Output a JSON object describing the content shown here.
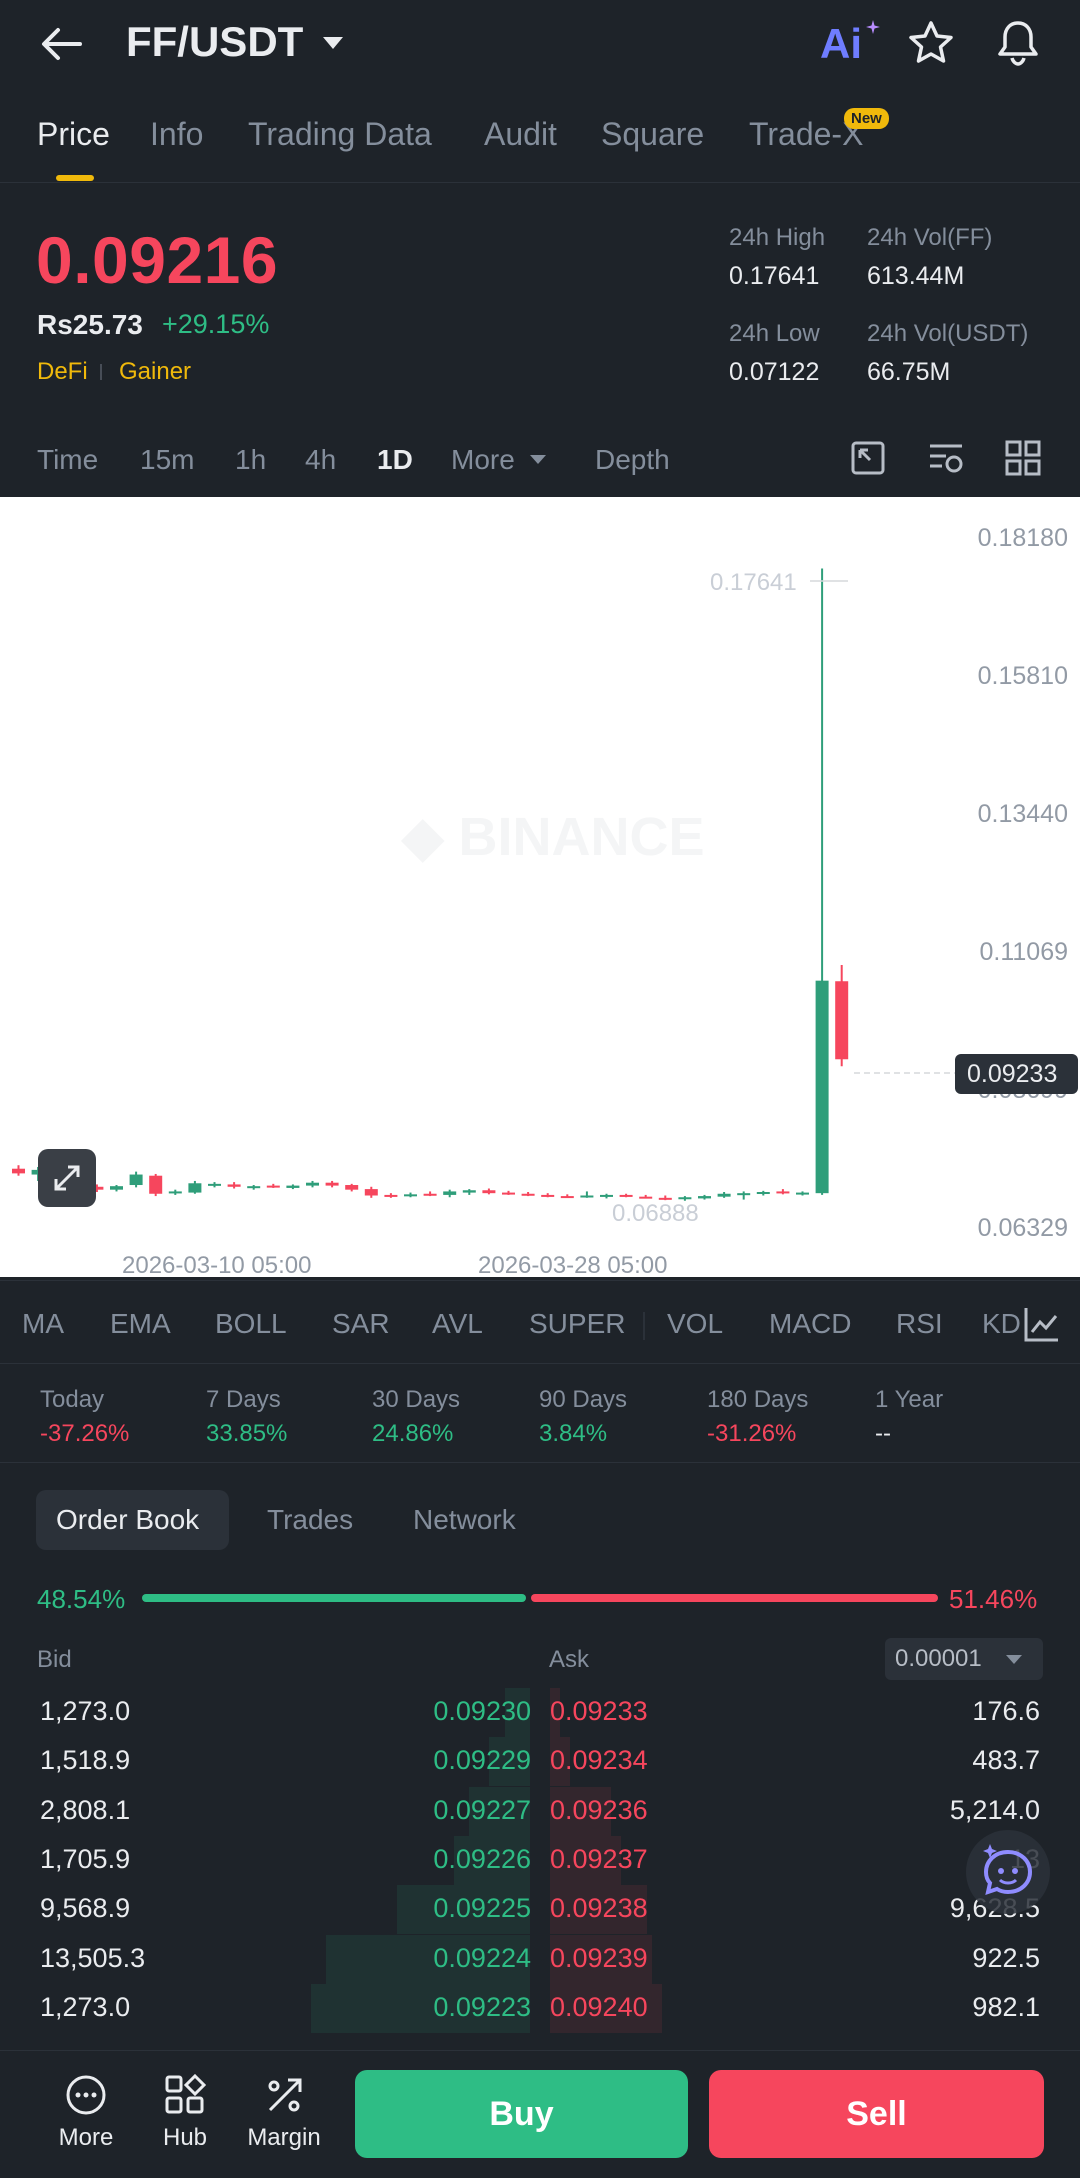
{
  "header": {
    "pair": "FF/USDT",
    "ai_label": "Ai"
  },
  "tabs": [
    {
      "label": "Price",
      "active": true
    },
    {
      "label": "Info"
    },
    {
      "label": "Trading Data"
    },
    {
      "label": "Audit"
    },
    {
      "label": "Square"
    },
    {
      "label": "Trade-X",
      "badge": "New"
    }
  ],
  "price": {
    "last": "0.09216",
    "fiat": "Rs25.73",
    "change": "+29.15%",
    "tags": [
      "DeFi",
      "Gainer"
    ]
  },
  "stats": {
    "high_label": "24h High",
    "high": "0.17641",
    "low_label": "24h Low",
    "low": "0.07122",
    "vol_ff_label": "24h Vol(FF)",
    "vol_ff": "613.44M",
    "vol_usdt_label": "24h Vol(USDT)",
    "vol_usdt": "66.75M"
  },
  "timeframes": [
    "Time",
    "15m",
    "1h",
    "4h",
    "1D",
    "More",
    "Depth"
  ],
  "active_timeframe": "1D",
  "chart_data": {
    "type": "candlestick",
    "y_ticks": [
      "0.18180",
      "0.15810",
      "0.13440",
      "0.11069",
      "0.08699",
      "0.06329"
    ],
    "x_ticks": [
      "2026-03-10 05:00",
      "2026-03-28 05:00"
    ],
    "ylim": [
      0.06329,
      0.1818
    ],
    "max_label": "0.17641",
    "min_label": "0.06888",
    "current_price_label": "0.09233",
    "candles": [
      {
        "o": 0.0733,
        "h": 0.0739,
        "l": 0.0721,
        "c": 0.0725
      },
      {
        "o": 0.0723,
        "h": 0.0736,
        "l": 0.0712,
        "c": 0.0731
      },
      {
        "o": 0.0729,
        "h": 0.0735,
        "l": 0.0705,
        "c": 0.0709
      },
      {
        "o": 0.0705,
        "h": 0.0708,
        "l": 0.0695,
        "c": 0.0701
      },
      {
        "o": 0.0702,
        "h": 0.0706,
        "l": 0.0693,
        "c": 0.0697
      },
      {
        "o": 0.0697,
        "h": 0.0705,
        "l": 0.0694,
        "c": 0.0703
      },
      {
        "o": 0.0705,
        "h": 0.0728,
        "l": 0.0701,
        "c": 0.0723
      },
      {
        "o": 0.0721,
        "h": 0.0724,
        "l": 0.0686,
        "c": 0.069
      },
      {
        "o": 0.0693,
        "h": 0.0697,
        "l": 0.0688,
        "c": 0.0694
      },
      {
        "o": 0.0692,
        "h": 0.0712,
        "l": 0.069,
        "c": 0.0708
      },
      {
        "o": 0.0706,
        "h": 0.071,
        "l": 0.0701,
        "c": 0.0707
      },
      {
        "o": 0.0706,
        "h": 0.071,
        "l": 0.0699,
        "c": 0.0702
      },
      {
        "o": 0.0701,
        "h": 0.0705,
        "l": 0.0697,
        "c": 0.0703
      },
      {
        "o": 0.0704,
        "h": 0.0707,
        "l": 0.07,
        "c": 0.0702
      },
      {
        "o": 0.07,
        "h": 0.0706,
        "l": 0.0698,
        "c": 0.0704
      },
      {
        "o": 0.0704,
        "h": 0.0712,
        "l": 0.0701,
        "c": 0.0709
      },
      {
        "o": 0.0709,
        "h": 0.0712,
        "l": 0.0701,
        "c": 0.0704
      },
      {
        "o": 0.0705,
        "h": 0.0707,
        "l": 0.0694,
        "c": 0.0697
      },
      {
        "o": 0.0698,
        "h": 0.0702,
        "l": 0.0683,
        "c": 0.0687
      },
      {
        "o": 0.0688,
        "h": 0.0691,
        "l": 0.0683,
        "c": 0.0687
      },
      {
        "o": 0.0686,
        "h": 0.0692,
        "l": 0.0684,
        "c": 0.0689
      },
      {
        "o": 0.069,
        "h": 0.0694,
        "l": 0.0686,
        "c": 0.0688
      },
      {
        "o": 0.0688,
        "h": 0.0697,
        "l": 0.0684,
        "c": 0.0694
      },
      {
        "o": 0.0692,
        "h": 0.0698,
        "l": 0.0688,
        "c": 0.0696
      },
      {
        "o": 0.0696,
        "h": 0.0699,
        "l": 0.0689,
        "c": 0.0691
      },
      {
        "o": 0.0692,
        "h": 0.0695,
        "l": 0.0688,
        "c": 0.069
      },
      {
        "o": 0.069,
        "h": 0.0693,
        "l": 0.0686,
        "c": 0.0688
      },
      {
        "o": 0.0688,
        "h": 0.0691,
        "l": 0.0684,
        "c": 0.0686
      },
      {
        "o": 0.0686,
        "h": 0.0689,
        "l": 0.0683,
        "c": 0.0685
      },
      {
        "o": 0.0685,
        "h": 0.0694,
        "l": 0.0683,
        "c": 0.0687
      },
      {
        "o": 0.0686,
        "h": 0.069,
        "l": 0.0682,
        "c": 0.0688
      },
      {
        "o": 0.0688,
        "h": 0.069,
        "l": 0.0684,
        "c": 0.0686
      },
      {
        "o": 0.0685,
        "h": 0.0688,
        "l": 0.0682,
        "c": 0.0684
      },
      {
        "o": 0.0683,
        "h": 0.0687,
        "l": 0.0679,
        "c": 0.0681
      },
      {
        "o": 0.0681,
        "h": 0.0686,
        "l": 0.0678,
        "c": 0.0684
      },
      {
        "o": 0.0682,
        "h": 0.0688,
        "l": 0.068,
        "c": 0.0686
      },
      {
        "o": 0.0685,
        "h": 0.0693,
        "l": 0.0683,
        "c": 0.069
      },
      {
        "o": 0.0689,
        "h": 0.0694,
        "l": 0.068,
        "c": 0.0691
      },
      {
        "o": 0.069,
        "h": 0.0695,
        "l": 0.0687,
        "c": 0.0693
      },
      {
        "o": 0.0694,
        "h": 0.0698,
        "l": 0.0689,
        "c": 0.0691
      },
      {
        "o": 0.069,
        "h": 0.0694,
        "l": 0.0687,
        "c": 0.0692
      },
      {
        "o": 0.0691,
        "h": 0.1764,
        "l": 0.0688,
        "c": 0.1056
      },
      {
        "o": 0.1055,
        "h": 0.1083,
        "l": 0.0909,
        "c": 0.0921
      }
    ]
  },
  "indicators": [
    "MA",
    "EMA",
    "BOLL",
    "SAR",
    "AVL",
    "SUPER",
    "VOL",
    "MACD",
    "RSI",
    "KD"
  ],
  "performance": [
    {
      "label": "Today",
      "value": "-37.26%",
      "dir": "down"
    },
    {
      "label": "7 Days",
      "value": "33.85%",
      "dir": "up"
    },
    {
      "label": "30 Days",
      "value": "24.86%",
      "dir": "up"
    },
    {
      "label": "90 Days",
      "value": "3.84%",
      "dir": "up"
    },
    {
      "label": "180 Days",
      "value": "-31.26%",
      "dir": "down"
    },
    {
      "label": "1 Year",
      "value": "--",
      "dir": "flat"
    }
  ],
  "orderbook_tabs": [
    "Order Book",
    "Trades",
    "Network"
  ],
  "ratio": {
    "bid": "48.54%",
    "ask": "51.46%"
  },
  "book_headers": {
    "bid": "Bid",
    "ask": "Ask",
    "precision": "0.00001"
  },
  "book": [
    {
      "bid_qty": "1,273.0",
      "bid_price": "0.09230",
      "ask_price": "0.09233",
      "ask_qty": "176.6",
      "bid_depth": 0.05,
      "ask_depth": 0.02
    },
    {
      "bid_qty": "1,518.9",
      "bid_price": "0.09229",
      "ask_price": "0.09234",
      "ask_qty": "483.7",
      "bid_depth": 0.08,
      "ask_depth": 0.04
    },
    {
      "bid_qty": "2,808.1",
      "bid_price": "0.09227",
      "ask_price": "0.09236",
      "ask_qty": "5,214.0",
      "bid_depth": 0.12,
      "ask_depth": 0.12
    },
    {
      "bid_qty": "1,705.9",
      "bid_price": "0.09226",
      "ask_price": "0.09237",
      "ask_qty": "13",
      "bid_depth": 0.15,
      "ask_depth": 0.14
    },
    {
      "bid_qty": "9,568.9",
      "bid_price": "0.09225",
      "ask_price": "0.09238",
      "ask_qty": "9,628.5",
      "bid_depth": 0.26,
      "ask_depth": 0.19
    },
    {
      "bid_qty": "13,505.3",
      "bid_price": "0.09224",
      "ask_price": "0.09239",
      "ask_qty": "922.5",
      "bid_depth": 0.4,
      "ask_depth": 0.2
    },
    {
      "bid_qty": "1,273.0",
      "bid_price": "0.09223",
      "ask_price": "0.09240",
      "ask_qty": "982.1",
      "bid_depth": 0.43,
      "ask_depth": 0.22
    }
  ],
  "bottom_nav": [
    {
      "label": "More",
      "icon": "more-icon"
    },
    {
      "label": "Hub",
      "icon": "hub-icon"
    },
    {
      "label": "Margin",
      "icon": "margin-icon"
    }
  ],
  "actions": {
    "buy": "Buy",
    "sell": "Sell"
  },
  "colors": {
    "up": "#2ebd85",
    "down": "#f6465d",
    "accent": "#f0b90b",
    "bg": "#1e2329",
    "muted": "#848e9c"
  }
}
